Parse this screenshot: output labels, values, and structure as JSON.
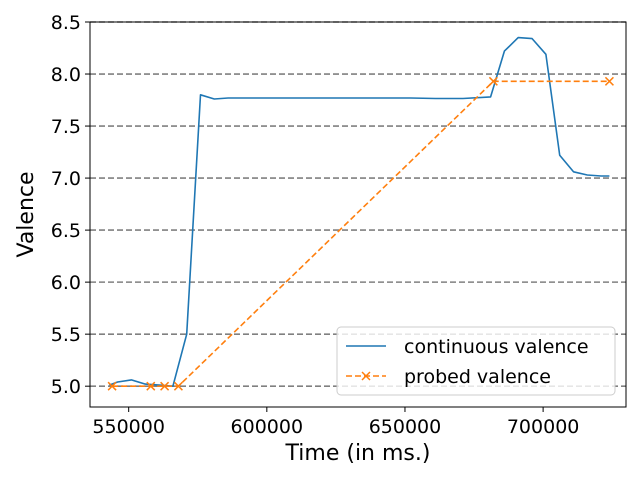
{
  "chart_data": {
    "type": "line",
    "xlabel": "Time (in ms.)",
    "ylabel": "Valence",
    "xlim": [
      536000,
      730000
    ],
    "ylim": [
      4.8,
      8.5
    ],
    "xticks": [
      550000,
      600000,
      650000,
      700000
    ],
    "xtick_labels": [
      "550000",
      "600000",
      "650000",
      "700000"
    ],
    "yticks": [
      5.0,
      5.5,
      6.0,
      6.5,
      7.0,
      7.5,
      8.0,
      8.5
    ],
    "ytick_labels": [
      "5.0",
      "5.5",
      "6.0",
      "6.5",
      "7.0",
      "7.5",
      "8.0",
      "8.5"
    ],
    "grid": "horizontal dashed",
    "legend_position": "lower-right",
    "series": [
      {
        "name": "continuous valence",
        "color": "#1f77b4",
        "style": "solid",
        "marker": "none",
        "x": [
          543000,
          546000,
          551000,
          556000,
          561000,
          566000,
          571000,
          576000,
          581000,
          586000,
          600000,
          620000,
          640000,
          652000,
          661000,
          671000,
          681000,
          686000,
          691000,
          696000,
          701000,
          706000,
          711000,
          716000,
          721000,
          724000
        ],
        "y": [
          5.01,
          5.04,
          5.06,
          5.02,
          5.01,
          5.0,
          5.5,
          7.8,
          7.76,
          7.77,
          7.77,
          7.77,
          7.77,
          7.77,
          7.765,
          7.765,
          7.78,
          8.22,
          8.35,
          8.34,
          8.19,
          7.22,
          7.06,
          7.03,
          7.02,
          7.02
        ]
      },
      {
        "name": "probed valence",
        "color": "#ff7f0e",
        "style": "dashed",
        "marker": "x",
        "x": [
          544000,
          558000,
          563000,
          568000,
          682000,
          724000
        ],
        "y": [
          5.0,
          5.0,
          5.0,
          5.0,
          7.93,
          7.93
        ]
      }
    ]
  }
}
